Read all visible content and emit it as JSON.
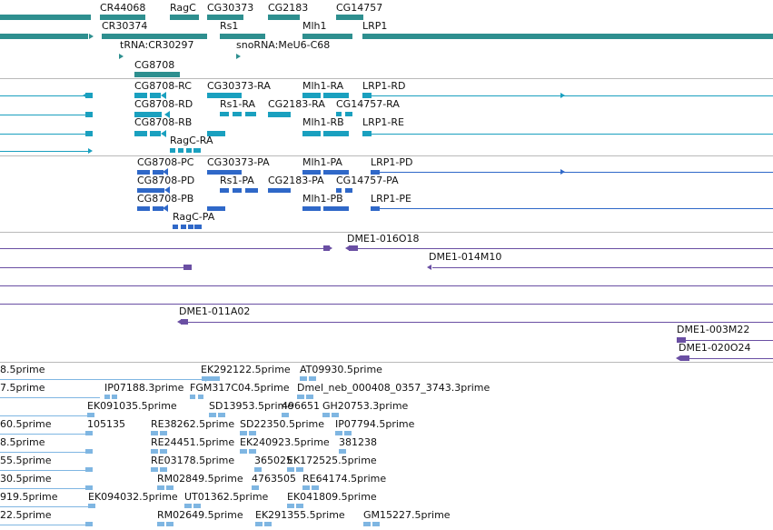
{
  "colors": {
    "gene": "#2e8f8f",
    "transcript": "#1aa0bf",
    "protein": "#2f68c8",
    "clone": "#6a4fa3",
    "est": "#7fb6e2",
    "separator": "#b9b9b9"
  },
  "tracks": {
    "genes": {
      "labels": [
        "CR44068",
        "RagC",
        "CG30373",
        "CG2183",
        "CG14757",
        "CR30374",
        "Rs1",
        "Mlh1",
        "LRP1",
        "tRNA:CR30297",
        "snoRNA:MeU6-C68",
        "CG8708"
      ]
    },
    "transcripts": {
      "labels": [
        "CG8708-RC",
        "CG30373-RA",
        "Mlh1-RA",
        "LRP1-RD",
        "CG8708-RD",
        "Rs1-RA",
        "CG2183-RA",
        "CG14757-RA",
        "CG8708-RB",
        "Mlh1-RB",
        "LRP1-RE",
        "RagC-RA"
      ]
    },
    "proteins": {
      "labels": [
        "CG8708-PC",
        "CG30373-PA",
        "Mlh1-PA",
        "LRP1-PD",
        "CG8708-PD",
        "Rs1-PA",
        "CG2183-PA",
        "CG14757-PA",
        "CG8708-PB",
        "Mlh1-PB",
        "LRP1-PE",
        "RagC-PA"
      ]
    },
    "clones": {
      "labels": [
        "DME1-016O18",
        "DME1-014M10",
        "DME1-011A02",
        "DME1-003M22",
        "DME1-020O24"
      ]
    },
    "ests": {
      "labels": [
        "8.5prime",
        "EK292122.5prime",
        "AT09930.5prime",
        "7.5prime",
        "IP07188.3prime",
        "FGM317C04.5prime",
        "Dmel_neb_000408_0357_3743.3prime",
        "EK091035.5prime",
        "SD13953.5prime",
        "496651",
        "GH20753.3prime",
        "60.5prime",
        "105135",
        "RE38262.5prime",
        "SD22350.5prime",
        "IP07794.5prime",
        "8.5prime",
        "RE24451.5prime",
        "EK240923.5prime",
        "381238",
        "55.5prime",
        "RE03178.5prime",
        "365025",
        "EK172525.5prime",
        "30.5prime",
        "RM02849.5prime",
        "4763505",
        "RE64174.5prime",
        "919.5prime",
        "EK094032.5prime",
        "UT01362.5prime",
        "EK041809.5prime",
        "22.5prime",
        "RM02649.5prime",
        "EK291355.5prime",
        "GM15227.5prime"
      ]
    }
  }
}
